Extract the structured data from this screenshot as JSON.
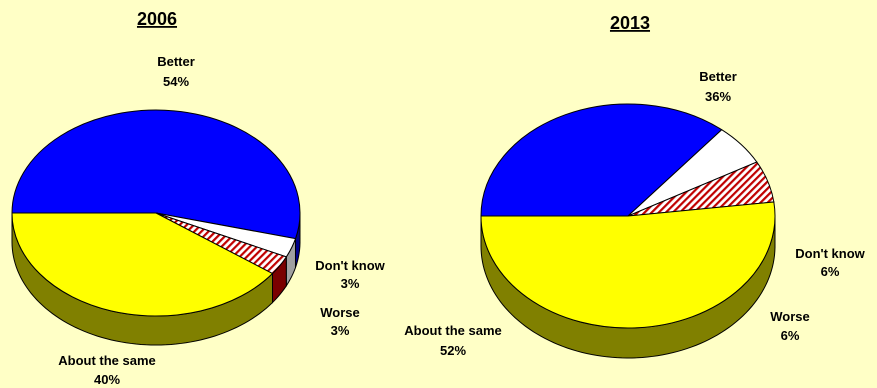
{
  "chart_data": [
    {
      "type": "pie",
      "title": "2006",
      "categories": [
        "Better",
        "Don't know",
        "Worse",
        "About the same"
      ],
      "values": [
        54,
        3,
        3,
        40
      ],
      "labels": [
        "54%",
        "3%",
        "3%",
        "40%"
      ],
      "colors": [
        "#0000FF",
        "#FFFFFF",
        "#C00000",
        "#FFFF00"
      ],
      "hatched": [
        false,
        false,
        true,
        false
      ]
    },
    {
      "type": "pie",
      "title": "2013",
      "categories": [
        "Better",
        "Don't know",
        "Worse",
        "About the same"
      ],
      "values": [
        36,
        6,
        6,
        52
      ],
      "labels": [
        "36%",
        "6%",
        "6%",
        "52%"
      ],
      "colors": [
        "#0000FF",
        "#FFFFFF",
        "#C00000",
        "#FFFF00"
      ],
      "hatched": [
        false,
        false,
        true,
        false
      ]
    }
  ]
}
